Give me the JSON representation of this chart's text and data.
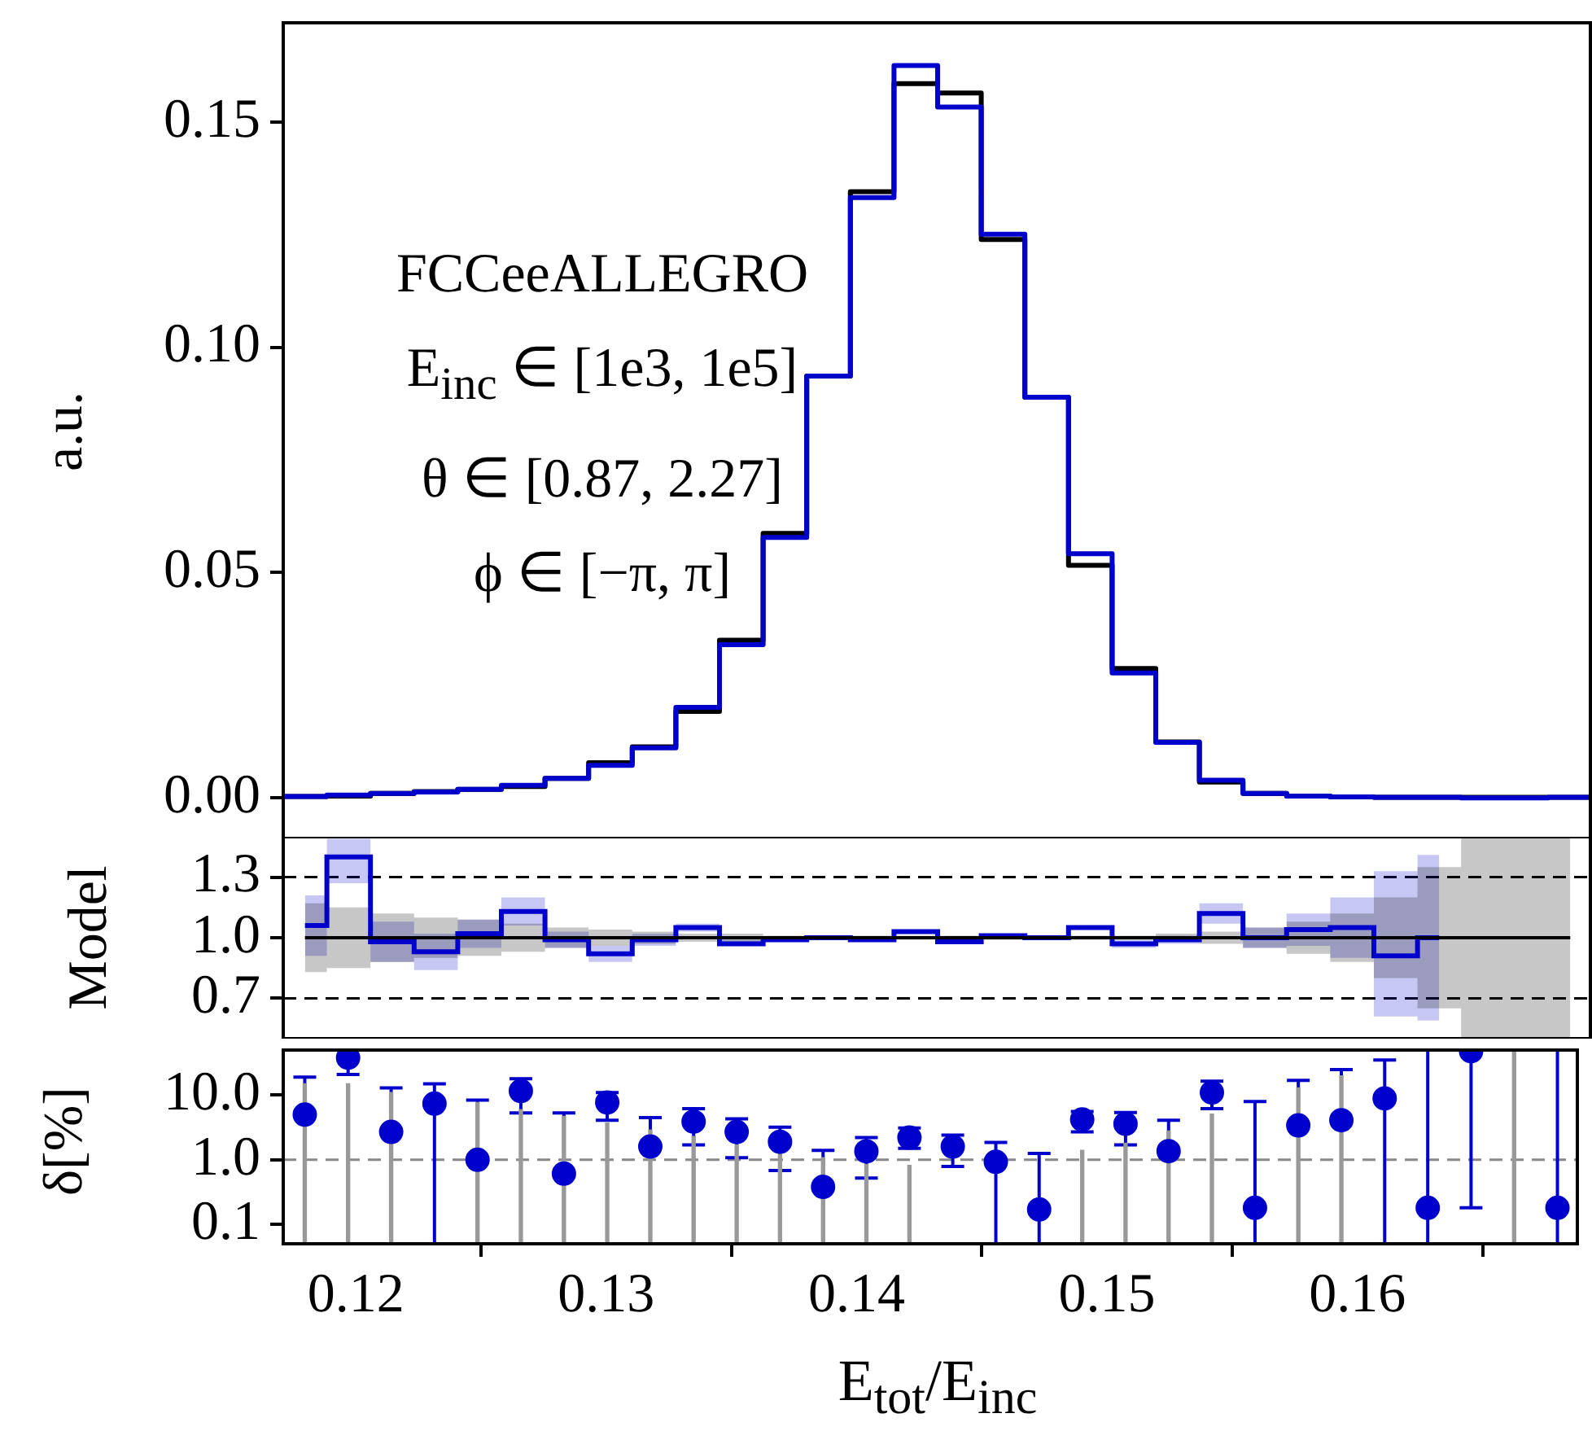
{
  "chart_data": [
    {
      "type": "histogram",
      "ylabel": "a.u.",
      "tick_labels": "y",
      "annotations": [
        "FCCeeALLEGRO",
        "E$_{inc}$ ∈ [1e3, 1e5]",
        "θ ∈ [0.87, 2.27]",
        "ϕ ∈ [−π, π]"
      ],
      "bins": [
        0.1171,
        0.118825,
        0.12055,
        0.122275,
        0.124,
        0.125725,
        0.12745,
        0.129175,
        0.1309,
        0.132625,
        0.13435,
        0.136075,
        0.1378,
        0.139525,
        0.14125,
        0.142975,
        0.1447,
        0.146425,
        0.14815,
        0.149875,
        0.1516,
        0.153325,
        0.15505,
        0.156775,
        0.1585,
        0.160225,
        0.16195,
        0.163675,
        0.1654,
        0.167125,
        0.16885
      ],
      "xlim": [
        0.1171,
        0.16885
      ],
      "xticks": [
        0.12,
        0.13,
        0.14,
        0.15,
        0.16
      ],
      "ylim": [
        -0.009,
        0.172
      ],
      "yticks": [
        {
          "value": 0,
          "label": "0.00"
        },
        0.05,
        {
          "value": 0.1,
          "label": "0.10"
        },
        0.15
      ],
      "series": [
        {
          "color": "#000000",
          "values": [
            0.0003,
            0.0004,
            0.001,
            0.0014,
            0.0019,
            0.0025,
            0.0043,
            0.0078,
            0.0113,
            0.0192,
            0.035,
            0.0587,
            0.0936,
            0.1345,
            0.1585,
            0.1564,
            0.1239,
            0.0889,
            0.0516,
            0.0287,
            0.0124,
            0.0035,
            0.001,
            0.0004,
            0.0002,
            0.0001,
            0.0001,
            0.0001,
            0.0001,
            0.0001
          ]
        },
        {
          "color": "#0000cc",
          "values": [
            0.0003,
            0.0006,
            0.001,
            0.0013,
            0.0019,
            0.0028,
            0.0043,
            0.0072,
            0.0111,
            0.0201,
            0.034,
            0.0578,
            0.0936,
            0.1332,
            0.1625,
            0.1533,
            0.1251,
            0.0889,
            0.0542,
            0.0277,
            0.0123,
            0.0039,
            0.001,
            0.0004,
            0.0002,
            0.0001,
            0.0001,
            0,
            0,
            0.0001
          ]
        }
      ]
    },
    {
      "type": "step",
      "ylabel": "Model",
      "tick_labels": "y",
      "x": [
        0.11796,
        0.11969,
        0.12141,
        0.12314,
        0.12486,
        0.12659,
        0.12831,
        0.13004,
        0.13176,
        0.13349,
        0.13521,
        0.13694,
        0.13866,
        0.14039,
        0.14211,
        0.14384,
        0.14556,
        0.14729,
        0.14901,
        0.15074,
        0.15246,
        0.15419,
        0.15591,
        0.15764,
        0.15936,
        0.16109,
        0.16281,
        0.16454,
        0.16626,
        0.16799
      ],
      "xlim": [
        0.1171,
        0.16885
      ],
      "xticks": [
        0.12,
        0.13,
        0.14,
        0.15,
        0.16
      ],
      "ylim": [
        0.5,
        1.5
      ],
      "yticks": [
        0.7,
        {
          "value": 1,
          "label": "1.0"
        },
        1.3
      ],
      "ref_lines": [
        {
          "axis": "y",
          "value": 1.3,
          "color": "#000000",
          "line_style": "dashed"
        },
        {
          "axis": "y",
          "value": 0.7,
          "color": "#000000",
          "line_style": "dashed"
        }
      ],
      "series": [
        {
          "color": "#000000",
          "values": [
            1,
            1,
            1,
            1,
            1,
            1,
            1,
            1,
            1,
            1,
            1,
            1,
            1,
            1,
            1,
            1,
            1,
            1,
            1,
            1,
            1,
            1,
            1,
            1,
            1,
            1,
            1,
            1,
            1,
            1
          ],
          "lower": [
            0.83,
            0.85,
            0.88,
            0.9,
            0.91,
            0.93,
            0.95,
            0.96,
            0.97,
            0.98,
            0.98,
            0.99,
            0.99,
            0.99,
            0.99,
            0.99,
            0.99,
            0.99,
            0.99,
            0.99,
            0.98,
            0.97,
            0.95,
            0.92,
            0.88,
            0.8,
            0.65,
            0.5,
            0.5,
            0.5
          ],
          "upper": [
            1.17,
            1.15,
            1.12,
            1.1,
            1.09,
            1.07,
            1.05,
            1.04,
            1.03,
            1.02,
            1.02,
            1.01,
            1.01,
            1.01,
            1.01,
            1.01,
            1.01,
            1.01,
            1.01,
            1.01,
            1.02,
            1.03,
            1.05,
            1.08,
            1.12,
            1.2,
            1.35,
            1.5,
            1.5,
            1.5
          ]
        },
        {
          "color": "#0000cc",
          "values": [
            1.06,
            1.4,
            0.98,
            0.93,
            1.02,
            1.13,
            0.99,
            0.92,
            0.99,
            1.05,
            0.97,
            0.99,
            1.0,
            0.99,
            1.03,
            0.98,
            1.01,
            1.0,
            1.05,
            0.97,
            0.99,
            1.12,
            1.0,
            1.04,
            1.05,
            0.91,
            1.0,
            null,
            null,
            null
          ],
          "lower": [
            0.91,
            1.27,
            0.88,
            0.84,
            0.95,
            1.06,
            0.95,
            0.88,
            0.96,
            1.03,
            0.96,
            0.98,
            0.99,
            0.98,
            1.02,
            0.97,
            1.0,
            0.99,
            1.04,
            0.95,
            0.97,
            1.07,
            0.95,
            0.96,
            0.9,
            0.61,
            0.59,
            null,
            null,
            null
          ],
          "upper": [
            1.21,
            1.49,
            1.08,
            1.02,
            1.09,
            1.2,
            1.03,
            0.96,
            1.02,
            1.07,
            0.99,
            1.0,
            1.01,
            1.0,
            1.04,
            0.99,
            1.02,
            1.01,
            1.06,
            0.99,
            1.01,
            1.17,
            1.05,
            1.12,
            1.2,
            1.33,
            1.41,
            null,
            null,
            null
          ]
        }
      ]
    },
    {
      "type": "scatter",
      "ylabel": "δ[%]",
      "xlabel": "E$_{tot}$/E$_{inc}$",
      "log": "y",
      "x": [
        0.11796,
        0.11969,
        0.12141,
        0.12314,
        0.12486,
        0.12659,
        0.12831,
        0.13004,
        0.13176,
        0.13349,
        0.13521,
        0.13694,
        0.13866,
        0.14039,
        0.14211,
        0.14384,
        0.14556,
        0.14729,
        0.14901,
        0.15074,
        0.15246,
        0.15419,
        0.15591,
        0.15764,
        0.15936,
        0.16109,
        0.16281,
        0.16454,
        0.16626,
        0.16799
      ],
      "xlim": [
        0.1171,
        0.16885
      ],
      "xticks": [
        0.12,
        0.13,
        0.14,
        0.15,
        0.16
      ],
      "ylim": [
        0.05,
        50
      ],
      "yticks": [
        0.1,
        {
          "value": 1,
          "label": "1.0"
        },
        {
          "value": 10,
          "label": "10.0"
        }
      ],
      "ref_lines": [
        {
          "axis": "y",
          "value": 1,
          "color": "#888888",
          "line_style": "dashed"
        }
      ],
      "series": [
        {
          "type": "bar",
          "color": "#999999",
          "values": [
            15,
            15,
            11,
            null,
            7.7,
            6.0,
            4.7,
            3.7,
            2.9,
            2.3,
            1.7,
            1.3,
            1.08,
            0.85,
            0.82,
            null,
            null,
            null,
            1.4,
            1.8,
            2.8,
            5.1,
            null,
            13,
            20,
            null,
            null,
            null,
            50,
            null
          ]
        },
        {
          "color": "#0000cc",
          "marker": "circle",
          "values": [
            5.0,
            38,
            2.7,
            7.4,
            1.0,
            11.6,
            0.61,
            7.7,
            1.6,
            3.9,
            2.7,
            1.9,
            0.38,
            1.35,
            2.2,
            1.6,
            0.93,
            0.17,
            4.2,
            3.6,
            1.36,
            11,
            0.18,
            3.4,
            4.1,
            8.9,
            0.18,
            48,
            null,
            0.18
          ],
          "errors": [
            [
              0.05,
              19
            ],
            [
              21,
              50
            ],
            [
              0.05,
              13
            ],
            [
              0.05,
              15
            ],
            [
              0.05,
              8.4
            ],
            [
              5.3,
              18
            ],
            [
              0.05,
              5.3
            ],
            [
              4.1,
              11
            ],
            [
              0.05,
              4.5
            ],
            [
              1.7,
              6.2
            ],
            [
              1.08,
              4.3
            ],
            [
              0.68,
              3.2
            ],
            [
              0.05,
              1.4
            ],
            [
              0.52,
              2.2
            ],
            [
              1.5,
              3.1
            ],
            [
              0.79,
              2.4
            ],
            [
              0.05,
              1.86
            ],
            [
              0.05,
              1.25
            ],
            [
              2.7,
              5.6
            ],
            [
              1.7,
              5.4
            ],
            [
              0.05,
              4.1
            ],
            [
              6.2,
              16.5
            ],
            [
              0.05,
              8
            ],
            [
              0.05,
              17
            ],
            [
              0.05,
              25
            ],
            [
              0.05,
              35
            ],
            [
              0.05,
              50
            ],
            [
              0.18,
              50
            ],
            null,
            [
              0.05,
              50
            ]
          ]
        }
      ]
    }
  ]
}
